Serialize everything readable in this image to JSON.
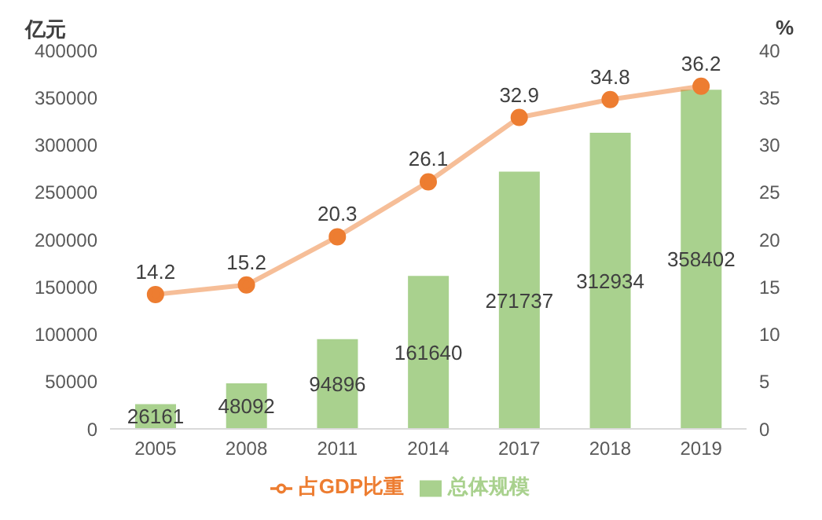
{
  "chart_data": {
    "type": "bar",
    "ylabel": "亿元",
    "y2label": "%",
    "categories": [
      "2005",
      "2008",
      "2011",
      "2014",
      "2017",
      "2018",
      "2019"
    ],
    "series": [
      {
        "name": "总体规模",
        "color": "#a9d18e",
        "values": [
          26161,
          48092,
          94896,
          161640,
          271737,
          312934,
          358402
        ]
      },
      {
        "name": "占GDP比重",
        "type": "line",
        "axis": "y2",
        "color": "#ed7d31",
        "values": [
          14.2,
          15.2,
          20.3,
          26.1,
          32.9,
          34.8,
          36.2
        ]
      }
    ],
    "ylim": [
      0,
      400000
    ],
    "yticks": [
      0,
      50000,
      100000,
      150000,
      200000,
      250000,
      300000,
      350000,
      400000
    ],
    "y2lim": [
      0,
      40
    ],
    "y2ticks": [
      0,
      5,
      10,
      15,
      20,
      25,
      30,
      35,
      40
    ],
    "data_labels": true,
    "legend": "bottom",
    "marker": "circle",
    "grid": false
  }
}
